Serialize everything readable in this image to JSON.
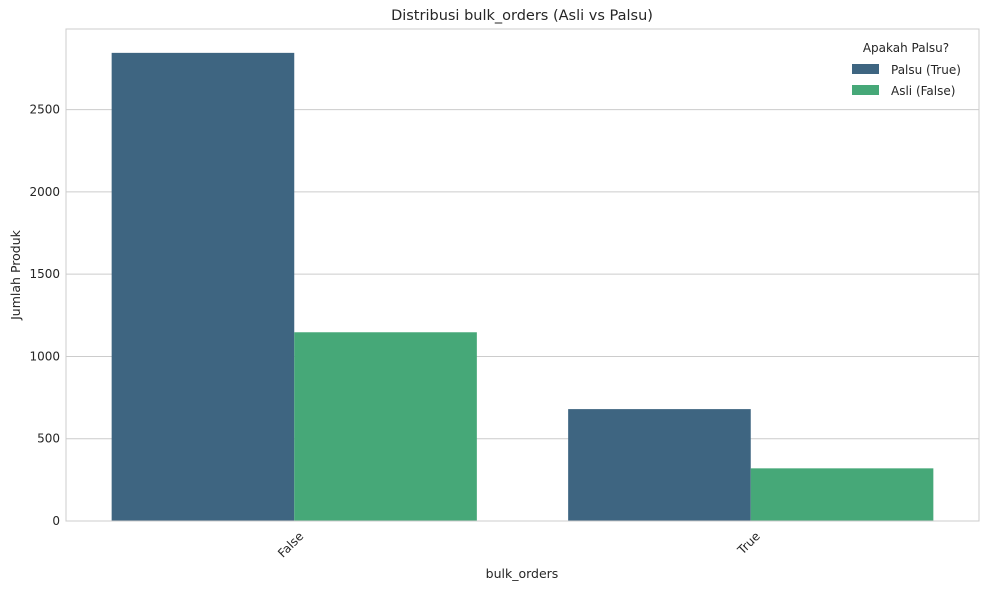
{
  "chart_data": {
    "type": "bar",
    "title": "Distribusi bulk_orders (Asli vs Palsu)",
    "xlabel": "bulk_orders",
    "ylabel": "Jumlah Produk",
    "categories": [
      "False",
      "True"
    ],
    "series": [
      {
        "name": "Palsu (True)",
        "values": [
          2845,
          680
        ],
        "color": "#3e6581"
      },
      {
        "name": "Asli (False)",
        "values": [
          1147,
          320
        ],
        "color": "#46a878"
      }
    ],
    "ylim": [
      0,
      2990
    ],
    "yticks": [
      0,
      500,
      1000,
      1500,
      2000,
      2500
    ],
    "grid": true,
    "legend": {
      "title": "Apakah Palsu?",
      "placement": "top-right"
    }
  }
}
